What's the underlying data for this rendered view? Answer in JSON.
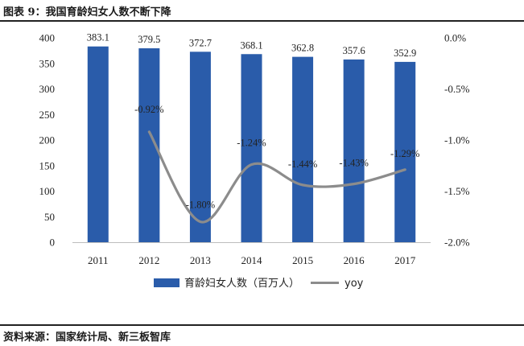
{
  "header": {
    "title": "图表 9：我国育龄妇女人数不断下降"
  },
  "footer": {
    "source": "资料来源：国家统计局、新三板智库"
  },
  "chart_data": {
    "type": "bar",
    "categories": [
      "2011",
      "2012",
      "2013",
      "2014",
      "2015",
      "2016",
      "2017"
    ],
    "series": [
      {
        "name": "育龄妇女人数（百万人）",
        "type": "bar",
        "axis": "left",
        "values": [
          383.1,
          379.5,
          372.7,
          368.1,
          362.8,
          357.6,
          352.9
        ],
        "labels": [
          "383.1",
          "379.5",
          "372.7",
          "368.1",
          "362.8",
          "357.6",
          "352.9"
        ],
        "color": "#2a5caa"
      },
      {
        "name": "yoy",
        "type": "line",
        "axis": "right",
        "values": [
          null,
          -0.92,
          -1.8,
          -1.24,
          -1.44,
          -1.43,
          -1.29
        ],
        "labels": [
          "",
          "-0.92%",
          "-1.80%",
          "-1.24%",
          "-1.44%",
          "-1.43%",
          "-1.29%"
        ],
        "color": "#8c8c8c"
      }
    ],
    "y_left": {
      "min": 0,
      "max": 400,
      "ticks": [
        "0",
        "50",
        "100",
        "150",
        "200",
        "250",
        "300",
        "350",
        "400"
      ]
    },
    "y_right": {
      "min": -2.0,
      "max": 0.0,
      "ticks": [
        "0.0%",
        "-0.5%",
        "-1.0%",
        "-1.5%",
        "-2.0%"
      ]
    },
    "legend": {
      "position": "bottom"
    },
    "grid": false
  }
}
